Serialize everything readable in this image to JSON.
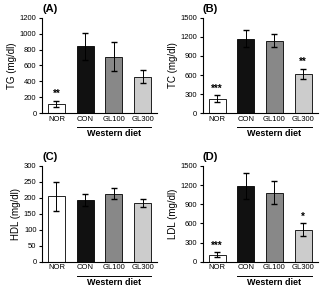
{
  "chart_data": [
    {
      "type": "bar",
      "title": "(A)",
      "y_label": "TG (mg/dl)",
      "categories": [
        "NOR",
        "CON",
        "GL100",
        "GL300"
      ],
      "values": [
        120,
        840,
        710,
        460
      ],
      "errors": [
        40,
        170,
        180,
        80
      ],
      "colors": [
        "#ffffff",
        "#111111",
        "#888888",
        "#cccccc"
      ],
      "ylim": [
        0,
        1200
      ],
      "yticks": [
        0,
        200,
        400,
        600,
        800,
        1000,
        1200
      ],
      "annotations": [
        {
          "text": "**",
          "category": "NOR"
        },
        {
          "text": "Western diet",
          "categories": [
            "CON",
            "GL100",
            "GL300"
          ]
        }
      ]
    },
    {
      "type": "bar",
      "title": "(B)",
      "y_label": "TC (mg/dl)",
      "categories": [
        "NOR",
        "CON",
        "GL100",
        "GL300"
      ],
      "values": [
        230,
        1170,
        1140,
        620
      ],
      "errors": [
        50,
        130,
        100,
        80
      ],
      "colors": [
        "#ffffff",
        "#111111",
        "#888888",
        "#cccccc"
      ],
      "ylim": [
        0,
        1500
      ],
      "yticks": [
        0,
        300,
        600,
        900,
        1200,
        1500
      ],
      "annotations": [
        {
          "text": "***",
          "category": "NOR"
        },
        {
          "text": "**",
          "category": "GL300"
        },
        {
          "text": "Western diet",
          "categories": [
            "CON",
            "GL100",
            "GL300"
          ]
        }
      ]
    },
    {
      "type": "bar",
      "title": "(C)",
      "y_label": "HDL (mg/dl)",
      "categories": [
        "NOR",
        "CON",
        "GL100",
        "GL300"
      ],
      "values": [
        205,
        193,
        213,
        183
      ],
      "errors": [
        45,
        20,
        18,
        12
      ],
      "colors": [
        "#ffffff",
        "#111111",
        "#888888",
        "#cccccc"
      ],
      "ylim": [
        0,
        300
      ],
      "yticks": [
        0,
        50,
        100,
        150,
        200,
        250,
        300
      ],
      "annotations": [
        {
          "text": "Western diet",
          "categories": [
            "CON",
            "GL100",
            "GL300"
          ]
        }
      ]
    },
    {
      "type": "bar",
      "title": "(D)",
      "y_label": "LDL (mg/dl)",
      "categories": [
        "NOR",
        "CON",
        "GL100",
        "GL300"
      ],
      "values": [
        110,
        1190,
        1080,
        500
      ],
      "errors": [
        35,
        200,
        180,
        100
      ],
      "colors": [
        "#ffffff",
        "#111111",
        "#888888",
        "#cccccc"
      ],
      "ylim": [
        0,
        1500
      ],
      "yticks": [
        0,
        300,
        600,
        900,
        1200,
        1500
      ],
      "annotations": [
        {
          "text": "***",
          "category": "NOR"
        },
        {
          "text": "*",
          "category": "GL300"
        },
        {
          "text": "Western diet",
          "categories": [
            "CON",
            "GL100",
            "GL300"
          ]
        }
      ]
    }
  ]
}
